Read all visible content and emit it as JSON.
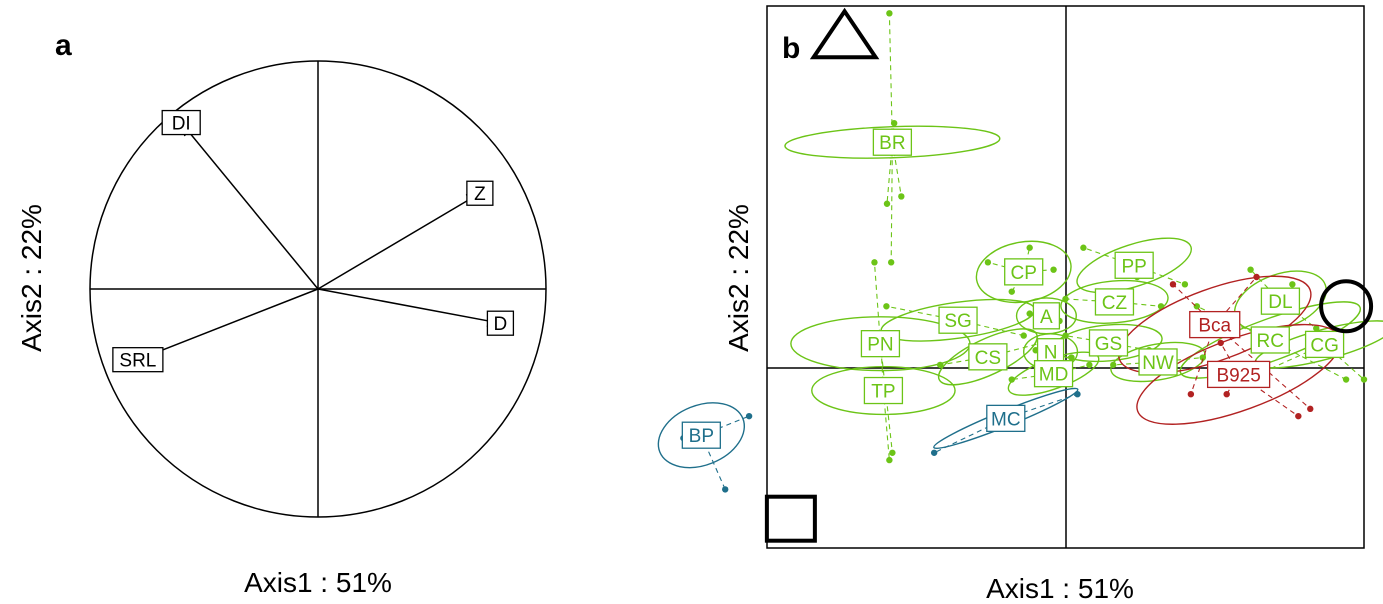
{
  "chart_data": [
    {
      "type": "correlation-circle",
      "panel_label": "a",
      "xlabel": "Axis1 : 51%",
      "ylabel": "Axis2 : 22%",
      "xlim": [
        -1,
        1
      ],
      "ylim": [
        -1,
        1
      ],
      "circle": true,
      "variables": [
        {
          "label": "DI",
          "x": -0.6,
          "y": 0.73
        },
        {
          "label": "Z",
          "x": 0.71,
          "y": 0.42
        },
        {
          "label": "D",
          "x": 0.8,
          "y": -0.15
        },
        {
          "label": "SRL",
          "x": -0.79,
          "y": -0.31
        }
      ]
    },
    {
      "type": "scatter",
      "panel_label": "b",
      "xlabel": "Axis1 : 51%",
      "ylabel": "Axis2 : 22%",
      "xlim": [
        -5.0,
        5.0
      ],
      "ylim": [
        -3.0,
        4.4
      ],
      "grid": "zero-lines",
      "colors": {
        "green": "#6cc417",
        "red": "#b22222",
        "blue": "#1f6f8b"
      },
      "markers": [
        {
          "shape": "triangle",
          "x": -3.7,
          "y": 4.0
        },
        {
          "shape": "circle",
          "x": 4.7,
          "y": 0.3
        },
        {
          "shape": "square",
          "x": -4.6,
          "y": -2.6
        }
      ],
      "groups": [
        {
          "label": "BR",
          "color": "green",
          "x": -2.9,
          "y": 2.54,
          "rx": 0.26,
          "ry": 1.8,
          "angle": 88,
          "points": [
            [
              -2.95,
              4.3
            ],
            [
              -2.87,
              2.8
            ],
            [
              -2.75,
              1.8
            ],
            [
              -2.99,
              1.7
            ],
            [
              -2.92,
              0.9
            ]
          ]
        },
        {
          "label": "CP",
          "color": "green",
          "x": -0.7,
          "y": 0.77,
          "rx": 0.8,
          "ry": 0.5,
          "angle": -10,
          "points": [
            [
              -1.3,
              0.9
            ],
            [
              -0.2,
              0.8
            ],
            [
              -0.6,
              1.1
            ],
            [
              -0.9,
              0.5
            ]
          ]
        },
        {
          "label": "PP",
          "color": "green",
          "x": 1.15,
          "y": 0.86,
          "rx": 1.0,
          "ry": 0.35,
          "angle": -18,
          "points": [
            [
              0.3,
              1.1
            ],
            [
              2.0,
              0.6
            ],
            [
              1.2,
              0.7
            ]
          ]
        },
        {
          "label": "CZ",
          "color": "green",
          "x": 0.82,
          "y": 0.36,
          "rx": 0.9,
          "ry": 0.35,
          "angle": -5,
          "points": [
            [
              0.0,
              0.4
            ],
            [
              1.6,
              0.3
            ]
          ]
        },
        {
          "label": "A",
          "color": "green",
          "x": -0.32,
          "y": 0.17,
          "rx": 0.5,
          "ry": 0.3,
          "angle": 0,
          "points": [
            [
              -0.6,
              0.2
            ],
            [
              -0.1,
              0.1
            ]
          ]
        },
        {
          "label": "SG",
          "color": "green",
          "x": -1.8,
          "y": 0.11,
          "rx": 1.3,
          "ry": 0.3,
          "angle": -8,
          "points": [
            [
              -3.0,
              0.3
            ],
            [
              -0.7,
              -0.1
            ]
          ]
        },
        {
          "label": "PN",
          "color": "green",
          "x": -3.1,
          "y": -0.21,
          "rx": 0.45,
          "ry": 1.5,
          "angle": 90,
          "points": [
            [
              -3.2,
              0.9
            ],
            [
              -2.9,
              -1.7
            ]
          ]
        },
        {
          "label": "TP",
          "color": "green",
          "x": -3.05,
          "y": -0.85,
          "rx": 0.4,
          "ry": 1.2,
          "angle": 90,
          "points": [
            [
              -3.1,
              -0.1
            ],
            [
              -2.95,
              -1.8
            ]
          ]
        },
        {
          "label": "CS",
          "color": "green",
          "x": -1.3,
          "y": -0.39,
          "rx": 0.9,
          "ry": 0.3,
          "angle": -25,
          "points": [
            [
              -2.1,
              -0.5
            ],
            [
              -0.4,
              -0.2
            ]
          ]
        },
        {
          "label": "N",
          "color": "green",
          "x": -0.25,
          "y": -0.32,
          "rx": 0.45,
          "ry": 0.3,
          "angle": 0,
          "points": [
            [
              -0.5,
              -0.3
            ],
            [
              0.1,
              -0.4
            ]
          ]
        },
        {
          "label": "GS",
          "color": "green",
          "x": 0.72,
          "y": -0.2,
          "rx": 0.9,
          "ry": 0.3,
          "angle": -5,
          "points": [
            [
              0.0,
              -0.1
            ],
            [
              1.4,
              -0.3
            ]
          ]
        },
        {
          "label": "MD",
          "color": "green",
          "x": -0.2,
          "y": -0.62,
          "rx": 0.8,
          "ry": 0.25,
          "angle": -20,
          "points": [
            [
              -0.9,
              -0.7
            ],
            [
              0.4,
              -0.5
            ]
          ]
        },
        {
          "label": "NW",
          "color": "green",
          "x": 1.55,
          "y": -0.46,
          "rx": 0.8,
          "ry": 0.3,
          "angle": -10,
          "points": [
            [
              0.8,
              -0.5
            ],
            [
              2.3,
              -0.4
            ]
          ]
        },
        {
          "label": "DL",
          "color": "green",
          "x": 3.6,
          "y": 0.37,
          "rx": 0.8,
          "ry": 0.45,
          "angle": -20,
          "points": [
            [
              3.1,
              0.8
            ],
            [
              4.2,
              0.0
            ],
            [
              3.8,
              0.6
            ]
          ]
        },
        {
          "label": "RC",
          "color": "green",
          "x": 3.43,
          "y": -0.16,
          "rx": 1.6,
          "ry": 0.35,
          "angle": -20,
          "points": [
            [
              2.2,
              0.3
            ],
            [
              4.7,
              -0.7
            ]
          ]
        },
        {
          "label": "CG",
          "color": "green",
          "x": 4.34,
          "y": -0.22,
          "rx": 1.2,
          "ry": 0.25,
          "angle": -15,
          "points": [
            [
              3.3,
              -0.6
            ],
            [
              5.0,
              -0.7
            ]
          ]
        },
        {
          "label": "Bca",
          "color": "red",
          "x": 2.5,
          "y": 0.05,
          "rx": 1.7,
          "ry": 0.6,
          "angle": -20,
          "points": [
            [
              1.8,
              0.6
            ],
            [
              3.2,
              0.7
            ],
            [
              2.1,
              -0.9
            ],
            [
              4.1,
              -1.1
            ]
          ]
        },
        {
          "label": "B925",
          "color": "red",
          "x": 2.9,
          "y": -0.63,
          "rx": 1.8,
          "ry": 0.6,
          "angle": -20,
          "points": [
            [
              2.6,
              -0.2
            ],
            [
              3.9,
              -1.2
            ],
            [
              2.7,
              -0.9
            ]
          ]
        },
        {
          "label": "MC",
          "color": "blue",
          "x": -1.0,
          "y": -1.23,
          "rx": 1.3,
          "ry": 0.13,
          "angle": -22,
          "points": [
            [
              -2.2,
              -1.7
            ],
            [
              0.2,
              -0.9
            ]
          ]
        },
        {
          "label": "BP",
          "color": "blue",
          "x": -6.1,
          "y": -1.46,
          "rx": 0.75,
          "ry": 0.5,
          "angle": -22,
          "points": [
            [
              -5.7,
              -2.2
            ],
            [
              -5.3,
              -1.2
            ],
            [
              -6.4,
              -1.5
            ]
          ]
        }
      ]
    }
  ]
}
